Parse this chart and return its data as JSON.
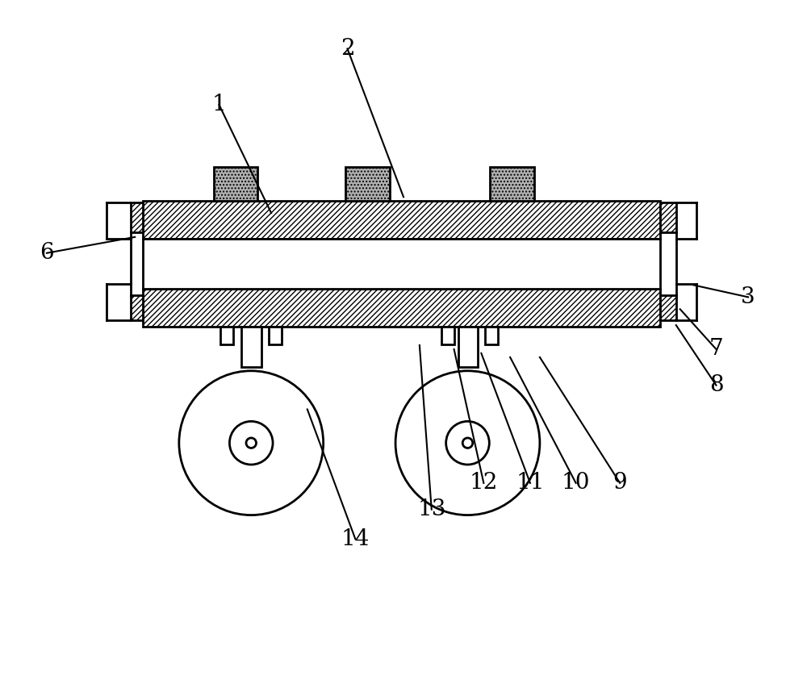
{
  "bg_color": "#ffffff",
  "line_color": "#000000",
  "figure_width": 10.0,
  "figure_height": 8.48,
  "label_fontsize": 20
}
